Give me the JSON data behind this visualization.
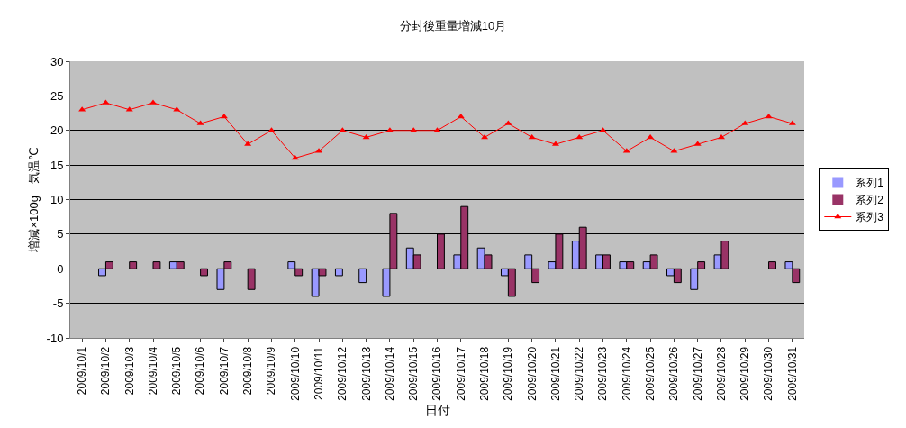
{
  "chart_data": {
    "type": "bar",
    "title": "分封後重量増減10月",
    "xlabel": "日付",
    "ylabel": "増減×100g　気温℃",
    "categories": [
      "2009/10/1",
      "2009/10/2",
      "2009/10/3",
      "2009/10/4",
      "2009/10/5",
      "2009/10/6",
      "2009/10/7",
      "2009/10/8",
      "2009/10/9",
      "2009/10/10",
      "2009/10/11",
      "2009/10/12",
      "2009/10/13",
      "2009/10/14",
      "2009/10/15",
      "2009/10/16",
      "2009/10/17",
      "2009/10/18",
      "2009/10/19",
      "2009/10/20",
      "2009/10/21",
      "2009/10/22",
      "2009/10/23",
      "2009/10/24",
      "2009/10/25",
      "2009/10/26",
      "2009/10/27",
      "2009/10/28",
      "2009/10/29",
      "2009/10/30",
      "2009/10/31"
    ],
    "series": [
      {
        "name": "系列1",
        "color": "#9999ff",
        "values": [
          0,
          -1,
          0,
          0,
          1,
          0,
          -3,
          0,
          0,
          1,
          -4,
          -1,
          -2,
          -4,
          3,
          0,
          2,
          3,
          -1,
          2,
          1,
          4,
          2,
          1,
          1,
          -1,
          -3,
          2,
          0,
          0,
          1
        ]
      },
      {
        "name": "系列2",
        "color": "#993366",
        "values": [
          0,
          1,
          1,
          1,
          1,
          -1,
          1,
          -3,
          0,
          -1,
          -1,
          0,
          0,
          8,
          2,
          5,
          9,
          2,
          -4,
          -2,
          5,
          6,
          2,
          1,
          2,
          -2,
          1,
          4,
          0,
          1,
          -2
        ]
      },
      {
        "name": "系列3",
        "type": "line",
        "color": "#ff0000",
        "marker": "triangle",
        "values": [
          23,
          24,
          23,
          24,
          23,
          21,
          22,
          18,
          20,
          16,
          17,
          20,
          19,
          20,
          20,
          20,
          22,
          19,
          21,
          19,
          18,
          19,
          20,
          17,
          19,
          17,
          18,
          19,
          21,
          22,
          21
        ]
      }
    ],
    "ylim": [
      -10,
      30
    ],
    "yticks": [
      -10,
      -5,
      0,
      5,
      10,
      15,
      20,
      25,
      30
    ],
    "grid": "y",
    "legend": "right"
  }
}
